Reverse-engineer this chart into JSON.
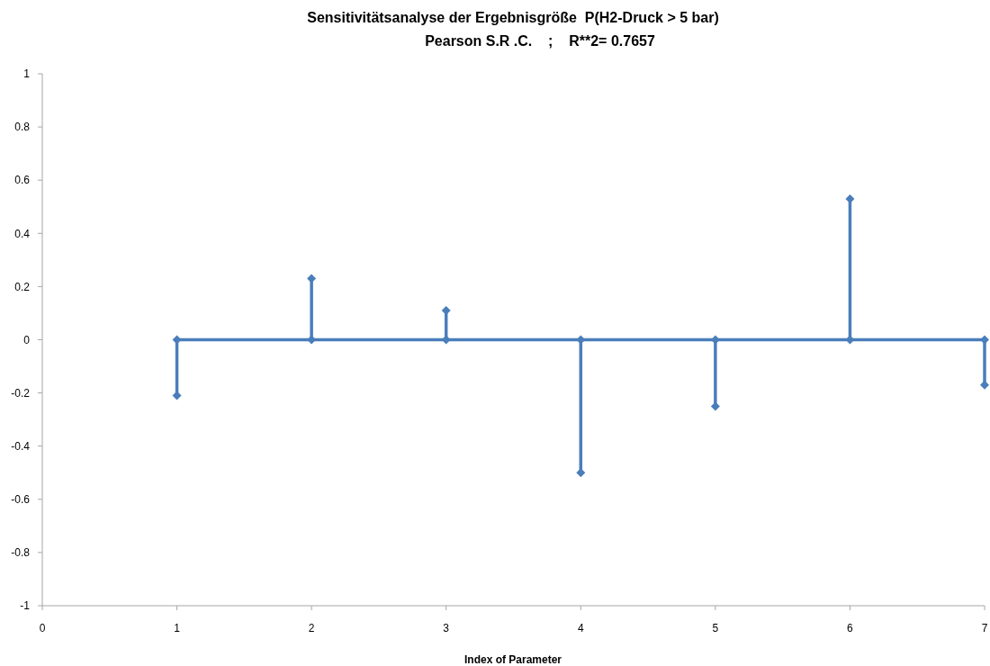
{
  "chart_data": {
    "type": "lollipop",
    "title": "Sensitivitätsanalyse der Ergebnisgröße  P(H2-Druck > 5 bar)",
    "subtitle": "Pearson S.R .C.    ;    R**2= 0.7657",
    "xlabel": "Index of Parameter",
    "x": [
      1,
      2,
      3,
      4,
      5,
      6,
      7
    ],
    "series": [
      {
        "type": "line",
        "color": "#4a7ebb",
        "values": [
          0,
          0,
          0,
          0,
          0,
          0,
          0
        ]
      },
      {
        "color": "#4a7ebb",
        "values": [
          -0.21,
          0.23,
          0.11,
          -0.5,
          -0.25,
          0.53,
          -0.17
        ]
      }
    ],
    "xlim": [
      0,
      7
    ],
    "xticks": [
      0,
      1,
      2,
      3,
      4,
      5,
      6,
      7
    ],
    "ylim": [
      -1,
      1
    ],
    "yticks": [
      -1,
      -0.8,
      -0.6,
      -0.4,
      -0.2,
      0,
      0.2,
      0.4,
      0.6,
      0.8,
      1
    ],
    "grid": false,
    "marker": "diamond",
    "line_style": "solid"
  }
}
